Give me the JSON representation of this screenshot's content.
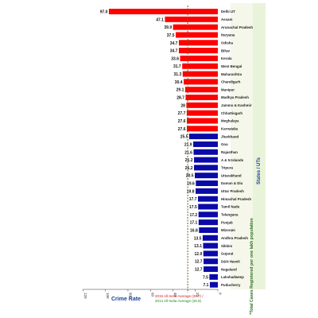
{
  "chart_data": {
    "type": "bar",
    "orientation": "horizontal",
    "xlabel": "Crime Rate",
    "ylabel": "States / UTs",
    "side_note": "*Total Cases Registered per one lakh population",
    "xlim": [
      0,
      120
    ],
    "x_ticks": [
      120,
      100,
      80,
      60,
      40,
      20,
      0
    ],
    "axis_direction": "reversed",
    "categories": [
      "Delhi UT",
      "Assam",
      "Arunachal Pradesh",
      "Haryana",
      "Odisha",
      "Bihar",
      "Kerala",
      "West Bengal",
      "Maharashtra",
      "Chandigarh",
      "Manipur",
      "Madhya Pradesh",
      "Jammu & Kashmir",
      "Chhattisgarh",
      "Meghalaya",
      "Karnataka",
      "Jharkhand",
      "Goa",
      "Rajasthan",
      "A & N Islands",
      "Tripura",
      "Uttarakhand",
      "Daman & Diu",
      "Uttar Pradesh",
      "Himachal Pradesh",
      "Tamil Nadu",
      "Telangana",
      "Punjab",
      "Mizoram",
      "Andhra Pradesh",
      "Sikkim",
      "Gujarat",
      "D&N Haveli",
      "Nagaland",
      "Lakshadweep",
      "Puducherry"
    ],
    "values": [
      97.0,
      47.1,
      39.9,
      37.5,
      34.7,
      34.7,
      33.6,
      31.7,
      31.3,
      30.4,
      29.1,
      28.7,
      28.0,
      27.7,
      27.6,
      27.6,
      25.5,
      21.9,
      21.6,
      21.2,
      21.2,
      20.5,
      19.6,
      19.8,
      17.7,
      17.5,
      17.2,
      17.1,
      16.8,
      13.5,
      13.1,
      12.9,
      12.7,
      12.7,
      7.5,
      7.1
    ],
    "labels": [
      "97.0",
      "47.1",
      "39.9",
      "37.5",
      "34.7",
      "34.7",
      "33.6",
      "31.7",
      "31.3",
      "30.4",
      "29.1",
      "28.7",
      "28",
      "27.7",
      "27.6",
      "27.6",
      "25.5",
      "21.9",
      "21.6",
      "21.2",
      "21.2",
      "20.5",
      "19.6",
      "19.8",
      "17.7",
      "17.5",
      "17.2",
      "17.1",
      "16.8",
      "13.5",
      "13.1",
      "12.9",
      "12.7",
      "12.7",
      "7.5",
      "7.1"
    ],
    "above_average_count": 16,
    "colors": {
      "above": "#ff0000",
      "below": "#0a0aa8",
      "avg2015": "#d91c1c",
      "avg2014": "#1e8a1e"
    },
    "reference_lines": [
      {
        "value": 26.7,
        "label": "2015 All-India Average (26.7) /",
        "color": "#d91c1c"
      },
      {
        "value": 26.9,
        "label": "2014 All-India Average (26.9)",
        "color": "#1e8a1e"
      }
    ]
  }
}
